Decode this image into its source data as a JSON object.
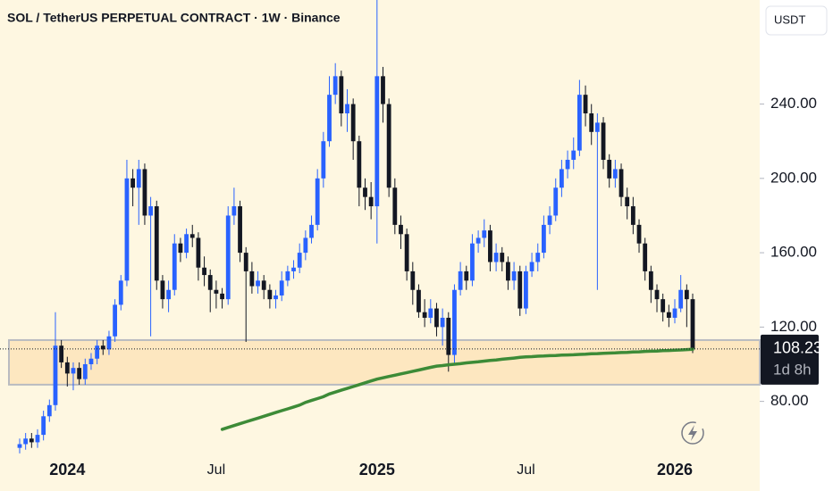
{
  "chart_data": {
    "type": "candlestick",
    "title": "SOL / TetherUS PERPETUAL CONTRACT · 1W · Binance",
    "currency": "USDT",
    "price_label": "108.23",
    "countdown": "1d 8h",
    "up_color": "#2962ff",
    "down_color": "#131722",
    "categories": [
      null,
      null,
      null,
      null,
      null,
      null,
      null,
      null,
      "2024",
      null,
      null,
      null,
      null,
      null,
      null,
      null,
      null,
      null,
      null,
      null,
      null,
      null,
      null,
      null,
      null,
      null,
      null,
      null,
      null,
      null,
      null,
      null,
      null,
      "Jul",
      null,
      null,
      null,
      null,
      null,
      null,
      null,
      null,
      null,
      null,
      null,
      null,
      null,
      null,
      null,
      null,
      null,
      null,
      null,
      null,
      null,
      null,
      null,
      null,
      null,
      null,
      "2025",
      null,
      null,
      null,
      null,
      null,
      null,
      null,
      null,
      null,
      null,
      null,
      null,
      null,
      null,
      null,
      null,
      null,
      null,
      null,
      null,
      null,
      null,
      null,
      null,
      "Jul",
      null,
      null,
      null,
      null,
      null,
      null,
      null,
      null,
      null,
      null,
      null,
      null,
      null,
      null,
      null,
      null,
      null,
      null,
      null,
      null,
      null,
      null,
      null,
      null,
      "2026",
      null,
      null,
      null
    ],
    "open": [
      55,
      57,
      60,
      58,
      62,
      72,
      78,
      110,
      101,
      95,
      98,
      92,
      100,
      103,
      110,
      108,
      115,
      132,
      145,
      200,
      195,
      205,
      180,
      185,
      145,
      135,
      140,
      165,
      160,
      170,
      168,
      152,
      148,
      140,
      138,
      135,
      180,
      185,
      160,
      150,
      142,
      145,
      140,
      135,
      137,
      145,
      150,
      152,
      160,
      168,
      175,
      200,
      220,
      245,
      255,
      235,
      240,
      220,
      195,
      190,
      185,
      255,
      240,
      195,
      175,
      170,
      150,
      140,
      128,
      125,
      130,
      120,
      125,
      105,
      140,
      150,
      145,
      165,
      168,
      172,
      155,
      160,
      155,
      145,
      150,
      130,
      150,
      155,
      160,
      175,
      180,
      195,
      205,
      210,
      215,
      245,
      235,
      225,
      230,
      210,
      200,
      205,
      190,
      185,
      175,
      165,
      150,
      140,
      135,
      128,
      125,
      130,
      140,
      135
    ],
    "high": [
      60,
      63,
      63,
      65,
      75,
      81,
      128,
      113,
      104,
      101,
      101,
      103,
      106,
      113,
      113,
      118,
      135,
      148,
      210,
      205,
      210,
      208,
      190,
      188,
      148,
      145,
      170,
      168,
      173,
      175,
      171,
      158,
      151,
      145,
      141,
      185,
      195,
      188,
      163,
      155,
      150,
      148,
      143,
      140,
      150,
      153,
      156,
      165,
      172,
      180,
      205,
      225,
      255,
      262,
      258,
      248,
      243,
      223,
      200,
      198,
      296,
      260,
      243,
      200,
      180,
      173,
      155,
      143,
      135,
      135,
      133,
      130,
      128,
      143,
      155,
      153,
      170,
      172,
      178,
      175,
      165,
      163,
      158,
      155,
      153,
      153,
      160,
      165,
      180,
      185,
      200,
      210,
      215,
      222,
      253,
      250,
      240,
      235,
      233,
      213,
      210,
      208,
      195,
      190,
      178,
      168,
      153,
      143,
      138,
      132,
      135,
      148,
      143,
      138
    ],
    "low": [
      52,
      54,
      55,
      55,
      59,
      69,
      75,
      98,
      88,
      86,
      89,
      89,
      97,
      100,
      105,
      105,
      112,
      129,
      142,
      185,
      175,
      175,
      115,
      140,
      130,
      128,
      137,
      155,
      157,
      163,
      145,
      142,
      128,
      130,
      130,
      132,
      175,
      155,
      112,
      138,
      138,
      135,
      130,
      130,
      134,
      142,
      146,
      149,
      156,
      165,
      172,
      195,
      217,
      240,
      228,
      225,
      210,
      185,
      183,
      178,
      165,
      230,
      190,
      170,
      162,
      145,
      132,
      125,
      120,
      122,
      115,
      110,
      96,
      100,
      137,
      140,
      142,
      160,
      163,
      150,
      150,
      150,
      140,
      140,
      126,
      127,
      147,
      150,
      157,
      170,
      177,
      190,
      200,
      205,
      212,
      228,
      218,
      140,
      205,
      195,
      195,
      185,
      178,
      170,
      160,
      145,
      133,
      128,
      123,
      120,
      122,
      128,
      120,
      106
    ],
    "close": [
      57,
      60,
      58,
      62,
      72,
      78,
      110,
      101,
      95,
      98,
      92,
      100,
      103,
      110,
      108,
      115,
      132,
      145,
      200,
      195,
      205,
      180,
      185,
      145,
      135,
      140,
      165,
      160,
      170,
      168,
      152,
      148,
      140,
      138,
      135,
      180,
      185,
      160,
      150,
      142,
      145,
      140,
      135,
      137,
      145,
      150,
      152,
      160,
      168,
      175,
      200,
      220,
      245,
      255,
      235,
      240,
      220,
      195,
      190,
      185,
      255,
      240,
      195,
      175,
      170,
      150,
      140,
      128,
      125,
      130,
      120,
      125,
      105,
      140,
      150,
      145,
      165,
      168,
      172,
      155,
      160,
      155,
      145,
      150,
      130,
      150,
      155,
      160,
      175,
      180,
      195,
      205,
      210,
      215,
      245,
      235,
      225,
      230,
      210,
      200,
      205,
      190,
      185,
      175,
      165,
      150,
      140,
      135,
      128,
      125,
      130,
      140,
      135,
      108.23
    ],
    "ma": {
      "color": "#3d8b37",
      "values": [
        null,
        null,
        null,
        null,
        null,
        null,
        null,
        null,
        null,
        null,
        null,
        null,
        null,
        null,
        null,
        null,
        null,
        null,
        null,
        null,
        null,
        null,
        null,
        null,
        null,
        null,
        null,
        null,
        null,
        null,
        null,
        null,
        null,
        null,
        65,
        66,
        67,
        68,
        69,
        70,
        71,
        72,
        73,
        74,
        75,
        76,
        77,
        78,
        79.5,
        80.5,
        81.5,
        82.5,
        84,
        85,
        86,
        87,
        88,
        89,
        90,
        91,
        92,
        92.7,
        93.4,
        94.1,
        94.8,
        95.5,
        96.2,
        96.9,
        97.6,
        98.3,
        99,
        99.3,
        99.7,
        100,
        100.3,
        100.7,
        101,
        101.3,
        101.7,
        102,
        102.3,
        102.7,
        103,
        103.3,
        103.7,
        104,
        104.1,
        104.3,
        104.4,
        104.6,
        104.7,
        104.9,
        105,
        105.1,
        105.3,
        105.4,
        105.6,
        105.7,
        105.9,
        106,
        106.1,
        106.3,
        106.4,
        106.6,
        106.7,
        106.9,
        107,
        107.1,
        107.3,
        107.4,
        107.6,
        107.7,
        107.9,
        108
      ]
    },
    "zone": {
      "low": 89,
      "high": 113,
      "color": "#fde6bd"
    },
    "ylim": [
      51,
      296
    ],
    "yticks": [
      {
        "value": 80,
        "label": "80.00"
      },
      {
        "value": 120,
        "label": "120.00"
      },
      {
        "value": 160,
        "label": "160.00"
      },
      {
        "value": 200,
        "label": "200.00"
      },
      {
        "value": 240,
        "label": "240.00"
      }
    ]
  }
}
